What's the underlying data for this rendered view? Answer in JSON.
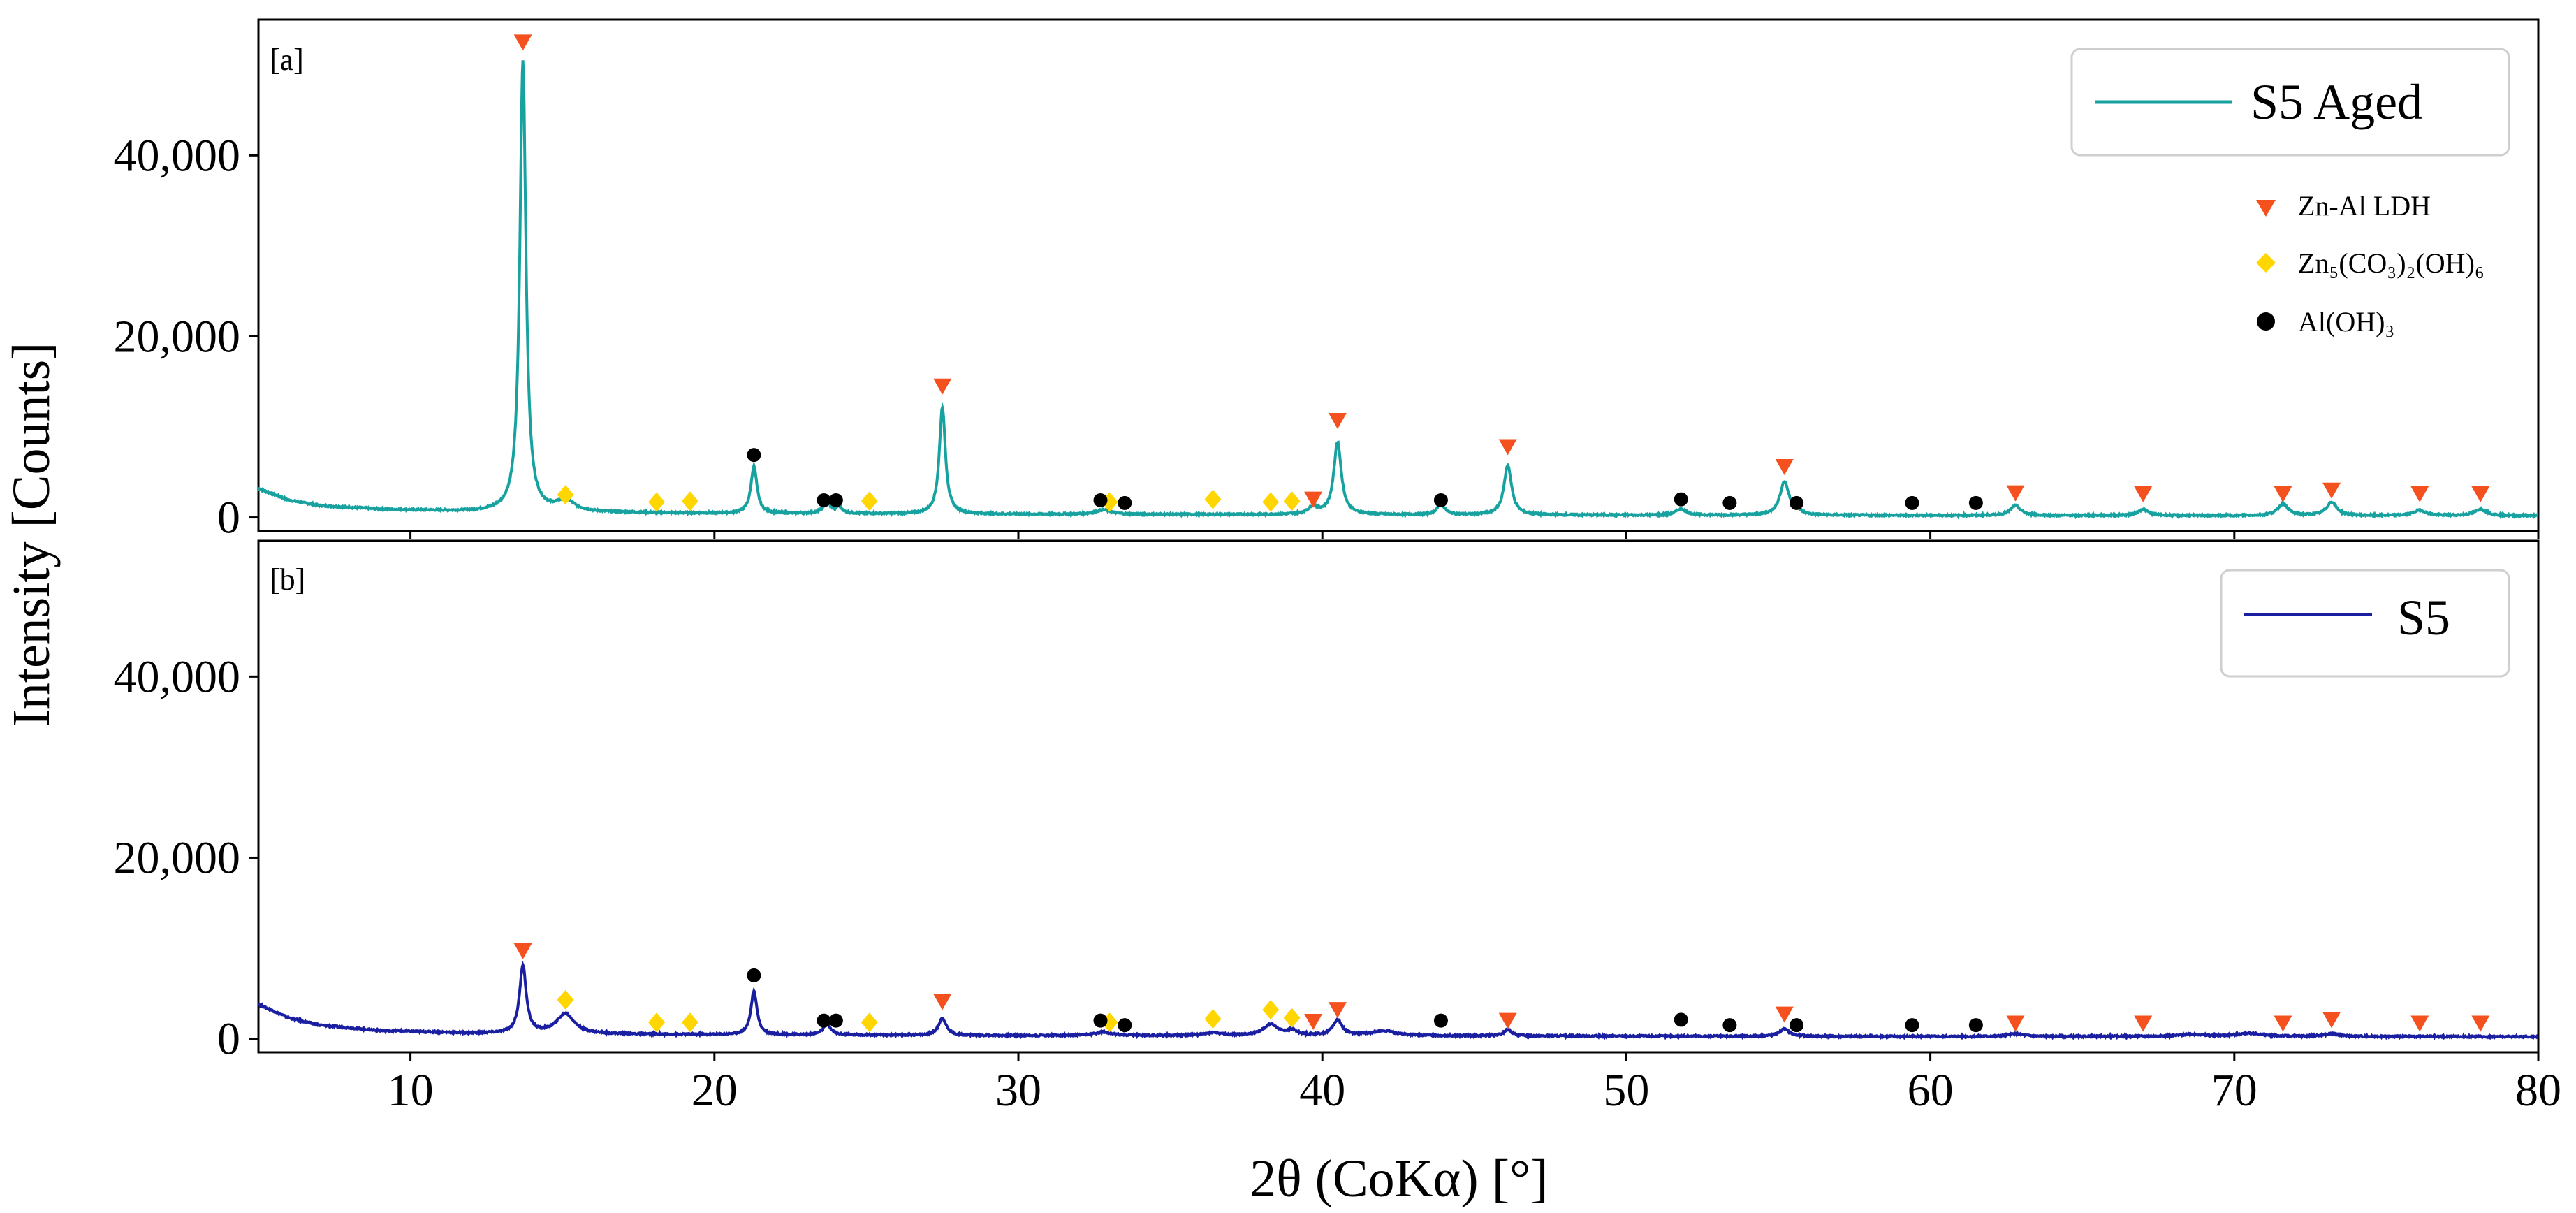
{
  "chart_data": {
    "type": "line",
    "xlabel": "2θ (CoKα) [°]",
    "ylabel": "Intensity [Counts]",
    "xlim": [
      5,
      80
    ],
    "ylim": [
      -1500,
      55000
    ],
    "x_ticks": [
      10,
      20,
      30,
      40,
      50,
      60,
      70,
      80
    ],
    "x_tick_labels": [
      "10",
      "20",
      "30",
      "40",
      "50",
      "60",
      "70",
      "80"
    ],
    "y_ticks": [
      0,
      20000,
      40000
    ],
    "y_tick_labels": [
      "0",
      "20,000",
      "40,000"
    ],
    "grid": false,
    "marker_legend": [
      {
        "label": "Zn-Al LDH",
        "shape": "triangle-down",
        "color": "#f4511e"
      },
      {
        "label": "Zn₅(CO₃)₂(OH)₆",
        "shape": "diamond",
        "color": "#ffd600"
      },
      {
        "label": "Al(OH)₃",
        "shape": "circle",
        "color": "#000000"
      }
    ],
    "panels": [
      {
        "tag": "[a]",
        "series": {
          "name": "S5 Aged",
          "color": "#17a2a0",
          "baseline": [
            [
              5,
              3200
            ],
            [
              6,
              1900
            ],
            [
              7,
              1300
            ],
            [
              9,
              900
            ],
            [
              12,
              650
            ],
            [
              20,
              450
            ],
            [
              30,
              350
            ],
            [
              40,
              300
            ],
            [
              50,
              250
            ],
            [
              60,
              220
            ],
            [
              70,
              200
            ],
            [
              80,
              180
            ]
          ],
          "peaks": [
            [
              13.7,
              49800,
              0.12
            ],
            [
              15.1,
              1200,
              0.35
            ],
            [
              21.3,
              5200,
              0.12
            ],
            [
              23.7,
              1200,
              0.15
            ],
            [
              24.1,
              700,
              0.12
            ],
            [
              27.5,
              11800,
              0.12
            ],
            [
              32.8,
              500,
              0.3
            ],
            [
              39.7,
              800,
              0.2
            ],
            [
              40.5,
              8000,
              0.15
            ],
            [
              43.9,
              1200,
              0.15
            ],
            [
              46.1,
              5500,
              0.15
            ],
            [
              51.8,
              700,
              0.2
            ],
            [
              55.2,
              3700,
              0.18
            ],
            [
              55.6,
              800,
              0.1
            ],
            [
              62.8,
              1100,
              0.2
            ],
            [
              67.0,
              700,
              0.2
            ],
            [
              71.6,
              1300,
              0.2
            ],
            [
              73.2,
              1500,
              0.2
            ],
            [
              76.1,
              600,
              0.25
            ],
            [
              78.1,
              700,
              0.25
            ]
          ]
        },
        "markers": {
          "ldh": [
            [
              13.7,
              52500
            ],
            [
              27.5,
              14500
            ],
            [
              39.7,
              2000
            ],
            [
              40.5,
              10700
            ],
            [
              46.1,
              7800
            ],
            [
              55.2,
              5600
            ],
            [
              62.8,
              2700
            ],
            [
              67.0,
              2600
            ],
            [
              71.6,
              2600
            ],
            [
              73.2,
              3000
            ],
            [
              76.1,
              2600
            ],
            [
              78.1,
              2600
            ]
          ],
          "zinc_carbonate": [
            [
              15.1,
              2500
            ],
            [
              18.1,
              1700
            ],
            [
              19.2,
              1800
            ],
            [
              25.1,
              1800
            ],
            [
              33.0,
              1700
            ],
            [
              36.4,
              2000
            ],
            [
              38.3,
              1700
            ],
            [
              39.0,
              1800
            ]
          ],
          "aluminium_hydroxide": [
            [
              21.3,
              6900
            ],
            [
              23.6,
              1900
            ],
            [
              24.0,
              1900
            ],
            [
              32.7,
              1900
            ],
            [
              33.5,
              1600
            ],
            [
              43.9,
              1900
            ],
            [
              51.8,
              2000
            ],
            [
              53.4,
              1600
            ],
            [
              55.6,
              1600
            ],
            [
              59.4,
              1600
            ],
            [
              61.5,
              1600
            ]
          ]
        }
      },
      {
        "tag": "[b]",
        "series": {
          "name": "S5",
          "color": "#1a1ea0",
          "baseline": [
            [
              5,
              3800
            ],
            [
              6,
              2300
            ],
            [
              7,
              1500
            ],
            [
              9,
              900
            ],
            [
              12,
              600
            ],
            [
              20,
              450
            ],
            [
              30,
              350
            ],
            [
              40,
              350
            ],
            [
              50,
              280
            ],
            [
              60,
              250
            ],
            [
              70,
              250
            ],
            [
              80,
              230
            ]
          ],
          "peaks": [
            [
              13.7,
              7500,
              0.13
            ],
            [
              15.1,
              2200,
              0.35
            ],
            [
              21.3,
              4800,
              0.12
            ],
            [
              23.7,
              1200,
              0.15
            ],
            [
              27.5,
              1900,
              0.15
            ],
            [
              32.8,
              400,
              0.3
            ],
            [
              36.4,
              300,
              0.3
            ],
            [
              38.3,
              1200,
              0.3
            ],
            [
              39.0,
              500,
              0.2
            ],
            [
              40.5,
              1700,
              0.18
            ],
            [
              42.0,
              500,
              0.5
            ],
            [
              46.1,
              700,
              0.15
            ],
            [
              55.2,
              800,
              0.2
            ],
            [
              62.8,
              300,
              0.3
            ],
            [
              68.6,
              250,
              0.4
            ],
            [
              70.5,
              350,
              0.5
            ],
            [
              73.2,
              300,
              0.3
            ]
          ]
        },
        "markers": {
          "ldh": [
            [
              13.7,
              9700
            ],
            [
              27.5,
              4100
            ],
            [
              39.7,
              1900
            ],
            [
              40.5,
              3200
            ],
            [
              46.1,
              2000
            ],
            [
              55.2,
              2700
            ],
            [
              62.8,
              1700
            ],
            [
              67.0,
              1700
            ],
            [
              71.6,
              1700
            ],
            [
              73.2,
              2100
            ],
            [
              76.1,
              1700
            ],
            [
              78.1,
              1700
            ]
          ],
          "zinc_carbonate": [
            [
              15.1,
              4300
            ],
            [
              18.1,
              1800
            ],
            [
              19.2,
              1800
            ],
            [
              25.1,
              1800
            ],
            [
              33.0,
              1800
            ],
            [
              36.4,
              2200
            ],
            [
              38.3,
              3200
            ],
            [
              39.0,
              2300
            ]
          ],
          "aluminium_hydroxide": [
            [
              21.3,
              7000
            ],
            [
              23.6,
              2000
            ],
            [
              24.0,
              2000
            ],
            [
              32.7,
              2000
            ],
            [
              33.5,
              1500
            ],
            [
              43.9,
              2000
            ],
            [
              51.8,
              2100
            ],
            [
              53.4,
              1500
            ],
            [
              55.6,
              1500
            ],
            [
              59.4,
              1500
            ],
            [
              61.5,
              1500
            ]
          ]
        }
      }
    ]
  }
}
